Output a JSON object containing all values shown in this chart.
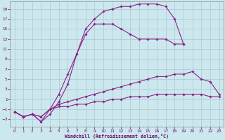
{
  "background_color": "#cce8ee",
  "grid_color": "#aac8d4",
  "line_color": "#882288",
  "xlabel": "Windchill (Refroidissement éolien,°C)",
  "xlim": [
    -0.5,
    23.5
  ],
  "ylim": [
    -4.5,
    20.5
  ],
  "xticks": [
    0,
    1,
    2,
    3,
    4,
    5,
    6,
    7,
    8,
    9,
    10,
    11,
    12,
    13,
    14,
    15,
    16,
    17,
    18,
    19,
    20,
    21,
    22,
    23
  ],
  "yticks": [
    -3,
    -1,
    1,
    3,
    5,
    7,
    9,
    11,
    13,
    15,
    17,
    19
  ],
  "curves": [
    {
      "x": [
        0,
        1,
        2,
        3,
        4,
        5,
        6,
        7,
        8,
        9,
        10,
        11,
        12,
        13,
        14,
        15,
        16,
        17,
        18,
        19
      ],
      "y": [
        -1.5,
        -2.5,
        -2,
        -3.5,
        -2,
        0.5,
        4,
        10,
        15,
        17,
        18.5,
        19,
        19.5,
        19.5,
        20,
        20,
        20,
        19.5,
        17,
        12
      ]
    },
    {
      "x": [
        0,
        1,
        2,
        3,
        4,
        5,
        6,
        7,
        8,
        9,
        10,
        11,
        12,
        13,
        14,
        15,
        16,
        17,
        18,
        19
      ],
      "y": [
        -1.5,
        -2.5,
        -2,
        -3.5,
        -1,
        2,
        6,
        10,
        14,
        16,
        16,
        16,
        15,
        14,
        13,
        13,
        13,
        13,
        12,
        12
      ]
    },
    {
      "x": [
        0,
        1,
        2,
        3,
        4,
        5,
        6,
        7,
        8,
        9,
        10,
        11,
        12,
        13,
        14,
        15,
        16,
        17,
        18,
        19,
        20,
        21,
        22,
        23
      ],
      "y": [
        -1.5,
        -2.5,
        -2,
        -2.5,
        -1,
        0,
        0.5,
        1,
        1.5,
        2,
        2.5,
        3,
        3.5,
        4,
        4.5,
        5,
        5.5,
        5.5,
        6,
        6,
        6.5,
        5,
        4.5,
        2
      ]
    },
    {
      "x": [
        0,
        1,
        2,
        3,
        4,
        5,
        6,
        7,
        8,
        9,
        10,
        11,
        12,
        13,
        14,
        15,
        16,
        17,
        18,
        19,
        20,
        21,
        22,
        23
      ],
      "y": [
        -1.5,
        -2.5,
        -2,
        -2.5,
        -1,
        -0.5,
        -0.5,
        0,
        0,
        0.5,
        0.5,
        1,
        1,
        1.5,
        1.5,
        1.5,
        2,
        2,
        2,
        2,
        2,
        2,
        1.5,
        1.5
      ]
    }
  ]
}
